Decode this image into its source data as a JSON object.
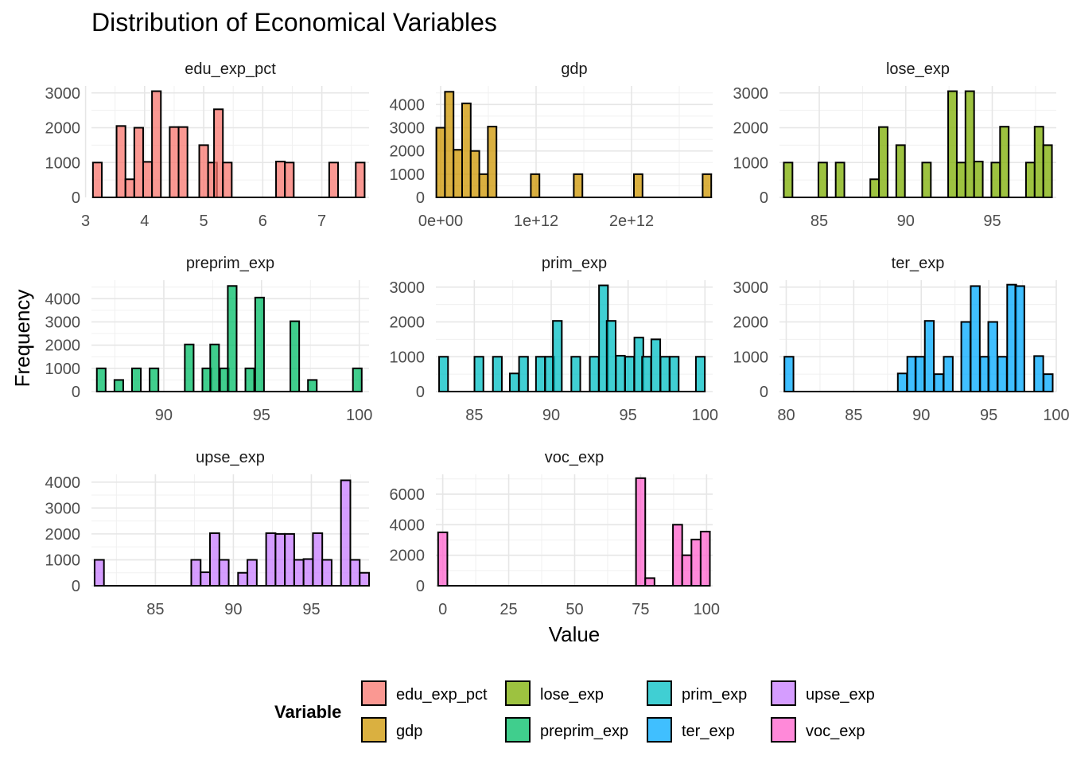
{
  "title": "Distribution of Economical Variables",
  "xlabel": "Value",
  "ylabel": "Frequency",
  "legend": {
    "title": "Variable",
    "position": "bottom",
    "items": [
      {
        "name": "edu_exp_pct",
        "color": "#F8766D"
      },
      {
        "name": "gdp",
        "color": "#CD9600"
      },
      {
        "name": "lose_exp",
        "color": "#7CAE00"
      },
      {
        "name": "preprim_exp",
        "color": "#00BE67"
      },
      {
        "name": "prim_exp",
        "color": "#00BFC4"
      },
      {
        "name": "ter_exp",
        "color": "#00A9FF"
      },
      {
        "name": "upse_exp",
        "color": "#C77CFF"
      },
      {
        "name": "voc_exp",
        "color": "#FF61CC"
      }
    ]
  },
  "chart_data": {
    "type": "bar",
    "subtype": "faceted-histogram",
    "grid": true,
    "bar_outline": "#000000",
    "facets": [
      {
        "name": "edu_exp_pct",
        "color": "#F8766D",
        "xlim": [
          3.1,
          7.8
        ],
        "ylim": [
          0,
          3200
        ],
        "x_ticks": [
          "3",
          "4",
          "5",
          "6",
          "7"
        ],
        "y_ticks": [
          "0",
          "1000",
          "2000",
          "3000"
        ],
        "bins": [
          [
            3.2,
            1000
          ],
          [
            3.6,
            2050
          ],
          [
            3.75,
            520
          ],
          [
            3.9,
            2000
          ],
          [
            4.05,
            1020
          ],
          [
            4.2,
            3050
          ],
          [
            4.5,
            2020
          ],
          [
            4.65,
            2020
          ],
          [
            5.0,
            1500
          ],
          [
            5.15,
            1000
          ],
          [
            5.25,
            2530
          ],
          [
            5.4,
            1000
          ],
          [
            6.3,
            1030
          ],
          [
            6.45,
            1000
          ],
          [
            7.2,
            1000
          ],
          [
            7.65,
            1000
          ]
        ],
        "bin_width": 0.15
      },
      {
        "name": "gdp",
        "color": "#CD9600",
        "xlim": [
          -50000000000.0,
          2850000000000.0
        ],
        "ylim": [
          0,
          4800
        ],
        "x_ticks": [
          "0e+00",
          "1e+12",
          "2e+12"
        ],
        "y_ticks": [
          "0",
          "1000",
          "2000",
          "3000",
          "4000"
        ],
        "bins": [
          [
            0,
            3000
          ],
          [
            90000000000.0,
            4550
          ],
          [
            180000000000.0,
            2050
          ],
          [
            270000000000.0,
            4050
          ],
          [
            360000000000.0,
            2000
          ],
          [
            450000000000.0,
            1000
          ],
          [
            540000000000.0,
            3050
          ],
          [
            990000000000.0,
            1000
          ],
          [
            1440000000000.0,
            1000
          ],
          [
            2070000000000.0,
            1000
          ],
          [
            2790000000000.0,
            1000
          ]
        ],
        "bin_width": 90000000000.0
      },
      {
        "name": "lose_exp",
        "color": "#7CAE00",
        "xlim": [
          82.7,
          98.7
        ],
        "ylim": [
          0,
          3200
        ],
        "x_ticks": [
          "85",
          "90",
          "95"
        ],
        "y_ticks": [
          "0",
          "1000",
          "2000",
          "3000"
        ],
        "bins": [
          [
            83.2,
            1000
          ],
          [
            85.2,
            1000
          ],
          [
            86.2,
            1000
          ],
          [
            88.2,
            520
          ],
          [
            88.7,
            2020
          ],
          [
            89.7,
            1500
          ],
          [
            91.2,
            1000
          ],
          [
            92.7,
            3050
          ],
          [
            93.2,
            1000
          ],
          [
            93.7,
            3050
          ],
          [
            94.2,
            1030
          ],
          [
            95.2,
            1000
          ],
          [
            95.7,
            2030
          ],
          [
            97.2,
            1000
          ],
          [
            97.7,
            2030
          ],
          [
            98.2,
            1500
          ]
        ],
        "bin_width": 0.5
      },
      {
        "name": "preprim_exp",
        "color": "#00BE67",
        "xlim": [
          86.3,
          100.5
        ],
        "ylim": [
          0,
          4800
        ],
        "x_ticks": [
          "90",
          "95",
          "100"
        ],
        "y_ticks": [
          "0",
          "1000",
          "2000",
          "3000",
          "4000"
        ],
        "bins": [
          [
            86.8,
            1000
          ],
          [
            87.7,
            500
          ],
          [
            88.6,
            1000
          ],
          [
            89.5,
            1000
          ],
          [
            91.3,
            2030
          ],
          [
            92.2,
            1000
          ],
          [
            92.6,
            2030
          ],
          [
            93.1,
            1000
          ],
          [
            93.5,
            4550
          ],
          [
            94.4,
            1000
          ],
          [
            94.9,
            4050
          ],
          [
            96.7,
            3030
          ],
          [
            97.6,
            500
          ],
          [
            99.9,
            1000
          ]
        ],
        "bin_width": 0.45
      },
      {
        "name": "prim_exp",
        "color": "#00BFC4",
        "xlim": [
          82.5,
          100.5
        ],
        "ylim": [
          0,
          3200
        ],
        "x_ticks": [
          "85",
          "90",
          "95",
          "100"
        ],
        "y_ticks": [
          "0",
          "1000",
          "2000",
          "3000"
        ],
        "bins": [
          [
            83.0,
            1000
          ],
          [
            85.3,
            1000
          ],
          [
            86.5,
            1000
          ],
          [
            87.6,
            520
          ],
          [
            88.2,
            1000
          ],
          [
            89.3,
            1000
          ],
          [
            89.9,
            1000
          ],
          [
            90.4,
            2030
          ],
          [
            91.6,
            1000
          ],
          [
            92.8,
            1000
          ],
          [
            93.4,
            3050
          ],
          [
            93.9,
            2030
          ],
          [
            94.5,
            1030
          ],
          [
            95.1,
            1000
          ],
          [
            95.7,
            1550
          ],
          [
            96.2,
            1000
          ],
          [
            96.8,
            1500
          ],
          [
            97.4,
            1000
          ],
          [
            98.0,
            1000
          ],
          [
            99.7,
            1000
          ]
        ],
        "bin_width": 0.58
      },
      {
        "name": "ter_exp",
        "color": "#00A9FF",
        "xlim": [
          79.5,
          100
        ],
        "ylim": [
          0,
          3200
        ],
        "x_ticks": [
          "80",
          "85",
          "90",
          "95",
          "100"
        ],
        "y_ticks": [
          "0",
          "1000",
          "2000",
          "3000"
        ],
        "bins": [
          [
            80.2,
            1000
          ],
          [
            88.6,
            520
          ],
          [
            89.3,
            1000
          ],
          [
            89.9,
            1000
          ],
          [
            90.6,
            2030
          ],
          [
            91.3,
            500
          ],
          [
            92.0,
            1000
          ],
          [
            93.3,
            2000
          ],
          [
            94.0,
            3030
          ],
          [
            94.7,
            1000
          ],
          [
            95.3,
            2000
          ],
          [
            96.0,
            1000
          ],
          [
            96.7,
            3070
          ],
          [
            97.3,
            3030
          ],
          [
            98.7,
            1020
          ],
          [
            99.4,
            500
          ]
        ],
        "bin_width": 0.67
      },
      {
        "name": "upse_exp",
        "color": "#C77CFF",
        "xlim": [
          80.9,
          98.7
        ],
        "ylim": [
          0,
          4300
        ],
        "x_ticks": [
          "85",
          "90",
          "95"
        ],
        "y_ticks": [
          "0",
          "1000",
          "2000",
          "3000",
          "4000"
        ],
        "bins": [
          [
            81.4,
            1000
          ],
          [
            87.6,
            1000
          ],
          [
            88.2,
            520
          ],
          [
            88.8,
            2030
          ],
          [
            89.4,
            1000
          ],
          [
            90.6,
            500
          ],
          [
            91.2,
            1000
          ],
          [
            92.4,
            2030
          ],
          [
            93.0,
            2000
          ],
          [
            93.6,
            2000
          ],
          [
            94.2,
            1000
          ],
          [
            94.8,
            1030
          ],
          [
            95.4,
            2030
          ],
          [
            96.0,
            1000
          ],
          [
            97.2,
            4070
          ],
          [
            97.8,
            1000
          ],
          [
            98.4,
            500
          ]
        ],
        "bin_width": 0.6
      },
      {
        "name": "voc_exp",
        "color": "#FF61CC",
        "xlim": [
          -2.6,
          102.3
        ],
        "ylim": [
          0,
          7300
        ],
        "x_ticks": [
          "0",
          "25",
          "50",
          "75",
          "100"
        ],
        "y_ticks": [
          "0",
          "2000",
          "4000",
          "6000"
        ],
        "bins": [
          [
            0,
            3500
          ],
          [
            75.0,
            7050
          ],
          [
            78.5,
            500
          ],
          [
            89.0,
            4000
          ],
          [
            92.5,
            2000
          ],
          [
            96.0,
            3030
          ],
          [
            99.5,
            3550
          ]
        ],
        "bin_width": 3.5
      }
    ]
  }
}
